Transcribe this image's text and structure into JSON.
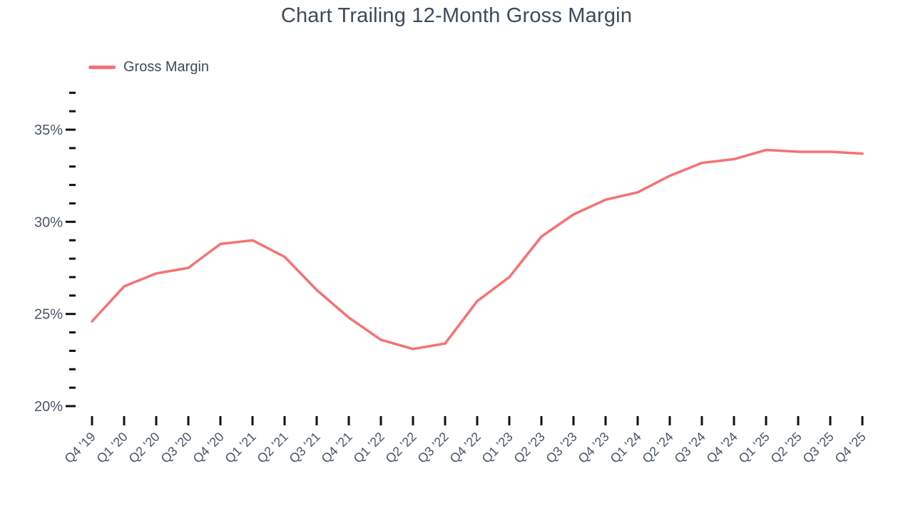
{
  "page": {
    "title": "Chart Trailing 12-Month Gross Margin"
  },
  "legend": {
    "label": "Gross Margin"
  },
  "colors": {
    "line": "#f87171",
    "tick": "#111111",
    "axis_label": "#475569",
    "title": "#3d4a5c",
    "background": "#ffffff"
  },
  "chart_data": {
    "type": "line",
    "title": "Chart Trailing 12-Month Gross Margin",
    "xlabel": "",
    "ylabel": "",
    "unit": "%",
    "ylim": [
      20,
      37
    ],
    "y_major_ticks": [
      20,
      25,
      30,
      35
    ],
    "y_major_tick_labels": [
      "20%",
      "25%",
      "30%",
      "35%"
    ],
    "y_minor_step": 1,
    "grid": false,
    "legend_position": "top-left",
    "categories": [
      "Q4 '19",
      "Q1 '20",
      "Q2 '20",
      "Q3 '20",
      "Q4 '20",
      "Q1 '21",
      "Q2 '21",
      "Q3 '21",
      "Q4 '21",
      "Q1 '22",
      "Q2 '22",
      "Q3 '22",
      "Q4 '22",
      "Q1 '23",
      "Q2 '23",
      "Q3 '23",
      "Q4 '23",
      "Q1 '24",
      "Q2 '24",
      "Q3 '24",
      "Q4 '24",
      "Q1 '25",
      "Q2 '25",
      "Q3 '25",
      "Q4 '25"
    ],
    "series": [
      {
        "name": "Gross Margin",
        "color": "#f87171",
        "values": [
          24.6,
          26.5,
          27.2,
          27.5,
          28.8,
          29.0,
          28.1,
          26.3,
          24.8,
          23.6,
          23.1,
          23.4,
          25.7,
          27.0,
          29.2,
          30.4,
          31.2,
          31.6,
          32.5,
          33.2,
          33.4,
          33.9,
          33.8,
          33.8,
          33.7
        ]
      }
    ]
  }
}
